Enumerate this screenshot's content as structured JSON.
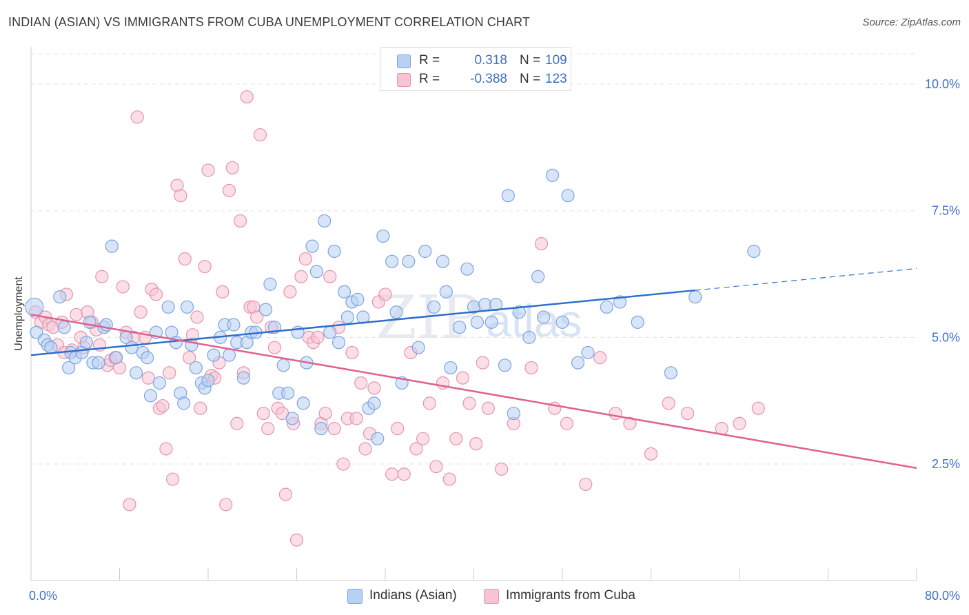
{
  "title": "INDIAN (ASIAN) VS IMMIGRANTS FROM CUBA UNEMPLOYMENT CORRELATION CHART",
  "source": "Source: ZipAtlas.com",
  "watermark": {
    "zip": "ZIP",
    "atlas": "atlas"
  },
  "legend": {
    "r_label": "R =",
    "n_label": "N =",
    "rows": [
      {
        "r": "0.318",
        "n": "109",
        "fill": "#b8d0f2",
        "stroke": "#7aa3e0"
      },
      {
        "r": "-0.388",
        "n": "123",
        "fill": "#f8c4d3",
        "stroke": "#e891ad"
      }
    ]
  },
  "chart_data": {
    "type": "scatter",
    "title": "INDIAN (ASIAN) VS IMMIGRANTS FROM CUBA UNEMPLOYMENT CORRELATION CHART",
    "xlabel": "",
    "ylabel": "Unemployment",
    "xlim": [
      0,
      80
    ],
    "ylim": [
      0.2,
      10.6
    ],
    "x_tick_labels": [
      "0.0%",
      "80.0%"
    ],
    "y_ticks": [
      2.5,
      5.0,
      7.5,
      10.0
    ],
    "y_tick_labels": [
      "2.5%",
      "5.0%",
      "7.5%",
      "10.0%"
    ],
    "grid": true,
    "legend_placement": "top-center",
    "series": [
      {
        "name": "Indians (Asian)",
        "color": "#7aa3e0",
        "fill": "#b8d0f2",
        "trend": {
          "x": [
            0,
            60
          ],
          "y": [
            4.65,
            5.93
          ],
          "extend_to": 80,
          "extend_y": 6.36
        },
        "points": [
          [
            0.3,
            5.6
          ],
          [
            0.5,
            5.1
          ],
          [
            1.2,
            4.95
          ],
          [
            1.5,
            4.85
          ],
          [
            1.8,
            4.8
          ],
          [
            2.6,
            5.8
          ],
          [
            3.0,
            5.2
          ],
          [
            3.4,
            4.4
          ],
          [
            3.6,
            4.7
          ],
          [
            4.0,
            4.6
          ],
          [
            4.6,
            4.7
          ],
          [
            5.0,
            4.9
          ],
          [
            5.3,
            5.3
          ],
          [
            5.6,
            4.5
          ],
          [
            6.1,
            4.5
          ],
          [
            6.6,
            5.2
          ],
          [
            6.8,
            5.25
          ],
          [
            7.3,
            6.8
          ],
          [
            7.7,
            4.6
          ],
          [
            8.6,
            5.0
          ],
          [
            9.1,
            4.8
          ],
          [
            9.5,
            4.3
          ],
          [
            10.1,
            4.7
          ],
          [
            10.5,
            4.6
          ],
          [
            10.8,
            3.85
          ],
          [
            11.3,
            5.1
          ],
          [
            11.6,
            4.1
          ],
          [
            12.4,
            5.6
          ],
          [
            12.7,
            5.1
          ],
          [
            13.1,
            4.9
          ],
          [
            13.5,
            3.9
          ],
          [
            13.8,
            3.7
          ],
          [
            14.1,
            5.6
          ],
          [
            14.5,
            4.85
          ],
          [
            14.9,
            4.4
          ],
          [
            15.4,
            4.1
          ],
          [
            15.7,
            4.0
          ],
          [
            16.0,
            4.15
          ],
          [
            16.5,
            4.65
          ],
          [
            17.1,
            5.0
          ],
          [
            17.5,
            5.25
          ],
          [
            17.9,
            4.65
          ],
          [
            18.3,
            5.25
          ],
          [
            18.6,
            4.9
          ],
          [
            19.2,
            4.2
          ],
          [
            19.5,
            4.9
          ],
          [
            19.9,
            5.1
          ],
          [
            20.3,
            5.1
          ],
          [
            21.2,
            5.55
          ],
          [
            21.6,
            6.05
          ],
          [
            22.0,
            5.2
          ],
          [
            22.4,
            3.9
          ],
          [
            22.8,
            4.45
          ],
          [
            23.2,
            3.9
          ],
          [
            23.6,
            3.4
          ],
          [
            24.1,
            5.1
          ],
          [
            24.6,
            3.7
          ],
          [
            24.9,
            4.5
          ],
          [
            25.4,
            6.8
          ],
          [
            25.8,
            6.3
          ],
          [
            26.2,
            3.2
          ],
          [
            26.5,
            7.3
          ],
          [
            27.0,
            5.1
          ],
          [
            27.4,
            6.7
          ],
          [
            27.8,
            4.9
          ],
          [
            28.3,
            5.9
          ],
          [
            28.6,
            5.4
          ],
          [
            29.0,
            5.7
          ],
          [
            29.5,
            5.75
          ],
          [
            30.0,
            5.4
          ],
          [
            30.5,
            3.6
          ],
          [
            31.0,
            3.7
          ],
          [
            31.3,
            3.0
          ],
          [
            31.8,
            7.0
          ],
          [
            32.6,
            6.5
          ],
          [
            33.0,
            5.5
          ],
          [
            33.5,
            4.1
          ],
          [
            34.1,
            6.5
          ],
          [
            35.0,
            4.8
          ],
          [
            35.6,
            6.7
          ],
          [
            36.4,
            5.6
          ],
          [
            37.2,
            6.5
          ],
          [
            37.5,
            5.9
          ],
          [
            37.9,
            4.4
          ],
          [
            38.7,
            5.2
          ],
          [
            39.4,
            6.35
          ],
          [
            40.0,
            5.6
          ],
          [
            40.3,
            5.3
          ],
          [
            41.0,
            5.65
          ],
          [
            41.6,
            5.3
          ],
          [
            42.0,
            5.65
          ],
          [
            42.8,
            4.45
          ],
          [
            43.1,
            7.8
          ],
          [
            43.6,
            3.5
          ],
          [
            44.1,
            5.5
          ],
          [
            45.0,
            5.0
          ],
          [
            45.8,
            6.2
          ],
          [
            46.3,
            5.4
          ],
          [
            47.1,
            8.2
          ],
          [
            48.0,
            5.3
          ],
          [
            48.5,
            7.8
          ],
          [
            49.4,
            4.5
          ],
          [
            50.3,
            4.7
          ],
          [
            52.0,
            5.6
          ],
          [
            53.2,
            5.7
          ],
          [
            54.8,
            5.3
          ],
          [
            57.8,
            4.3
          ],
          [
            60.0,
            5.8
          ],
          [
            65.3,
            6.7
          ]
        ]
      },
      {
        "name": "Immigrants from Cuba",
        "color": "#e891ad",
        "fill": "#f8c4d3",
        "trend": {
          "x": [
            0,
            80
          ],
          "y": [
            5.45,
            2.42
          ]
        },
        "points": [
          [
            0.4,
            5.5
          ],
          [
            0.9,
            5.3
          ],
          [
            1.3,
            5.4
          ],
          [
            1.6,
            5.25
          ],
          [
            2.0,
            5.2
          ],
          [
            2.4,
            4.85
          ],
          [
            2.8,
            5.3
          ],
          [
            3.0,
            4.7
          ],
          [
            3.2,
            5.85
          ],
          [
            3.7,
            4.75
          ],
          [
            4.1,
            5.45
          ],
          [
            4.5,
            5.0
          ],
          [
            4.8,
            4.8
          ],
          [
            5.1,
            5.5
          ],
          [
            5.5,
            5.3
          ],
          [
            5.9,
            5.15
          ],
          [
            6.2,
            4.85
          ],
          [
            6.4,
            6.2
          ],
          [
            6.9,
            4.45
          ],
          [
            7.2,
            4.55
          ],
          [
            7.6,
            4.6
          ],
          [
            8.0,
            4.4
          ],
          [
            8.3,
            6.0
          ],
          [
            8.6,
            5.1
          ],
          [
            8.9,
            1.7
          ],
          [
            9.3,
            5.0
          ],
          [
            9.6,
            9.35
          ],
          [
            9.9,
            5.5
          ],
          [
            10.3,
            5.0
          ],
          [
            10.6,
            4.2
          ],
          [
            10.9,
            5.95
          ],
          [
            11.3,
            5.85
          ],
          [
            11.6,
            3.6
          ],
          [
            11.9,
            3.65
          ],
          [
            12.2,
            2.8
          ],
          [
            12.5,
            4.3
          ],
          [
            12.8,
            2.2
          ],
          [
            13.2,
            8.0
          ],
          [
            13.5,
            7.8
          ],
          [
            13.9,
            6.55
          ],
          [
            14.3,
            4.6
          ],
          [
            14.6,
            5.05
          ],
          [
            15.0,
            5.4
          ],
          [
            15.3,
            3.6
          ],
          [
            15.7,
            6.4
          ],
          [
            16.0,
            8.3
          ],
          [
            16.3,
            4.25
          ],
          [
            16.6,
            4.2
          ],
          [
            17.0,
            4.5
          ],
          [
            17.3,
            5.9
          ],
          [
            17.6,
            1.7
          ],
          [
            17.9,
            7.9
          ],
          [
            18.2,
            8.35
          ],
          [
            18.6,
            3.3
          ],
          [
            18.9,
            7.3
          ],
          [
            19.2,
            4.3
          ],
          [
            19.5,
            9.75
          ],
          [
            19.8,
            5.6
          ],
          [
            20.1,
            5.6
          ],
          [
            20.4,
            5.4
          ],
          [
            20.7,
            9.0
          ],
          [
            21.0,
            3.5
          ],
          [
            21.4,
            3.2
          ],
          [
            21.7,
            5.2
          ],
          [
            22.0,
            4.8
          ],
          [
            22.3,
            3.6
          ],
          [
            22.7,
            3.5
          ],
          [
            23.0,
            1.9
          ],
          [
            23.4,
            5.9
          ],
          [
            23.7,
            3.3
          ],
          [
            24.0,
            1.0
          ],
          [
            24.4,
            6.2
          ],
          [
            24.8,
            6.55
          ],
          [
            25.1,
            5.0
          ],
          [
            25.5,
            4.9
          ],
          [
            25.9,
            5.0
          ],
          [
            26.2,
            3.3
          ],
          [
            26.6,
            3.5
          ],
          [
            27.0,
            6.2
          ],
          [
            27.4,
            3.2
          ],
          [
            27.8,
            5.2
          ],
          [
            28.2,
            2.5
          ],
          [
            28.6,
            3.4
          ],
          [
            29.0,
            4.7
          ],
          [
            29.4,
            3.4
          ],
          [
            29.8,
            4.1
          ],
          [
            30.2,
            2.8
          ],
          [
            30.6,
            3.1
          ],
          [
            31.0,
            4.0
          ],
          [
            31.4,
            5.7
          ],
          [
            32.0,
            5.85
          ],
          [
            32.6,
            2.3
          ],
          [
            33.1,
            3.2
          ],
          [
            33.7,
            2.3
          ],
          [
            34.3,
            4.7
          ],
          [
            34.8,
            2.8
          ],
          [
            35.4,
            3.0
          ],
          [
            36.0,
            3.7
          ],
          [
            36.6,
            2.45
          ],
          [
            37.2,
            4.1
          ],
          [
            37.8,
            2.2
          ],
          [
            38.4,
            3.0
          ],
          [
            39.0,
            4.2
          ],
          [
            39.6,
            3.7
          ],
          [
            40.2,
            2.9
          ],
          [
            40.8,
            4.5
          ],
          [
            41.3,
            3.6
          ],
          [
            42.5,
            2.4
          ],
          [
            43.6,
            3.3
          ],
          [
            45.2,
            4.4
          ],
          [
            46.1,
            6.85
          ],
          [
            47.3,
            3.6
          ],
          [
            48.4,
            3.3
          ],
          [
            50.1,
            2.1
          ],
          [
            51.4,
            4.6
          ],
          [
            52.8,
            3.5
          ],
          [
            54.1,
            3.3
          ],
          [
            56.0,
            2.7
          ],
          [
            57.6,
            3.7
          ],
          [
            59.3,
            3.5
          ],
          [
            62.4,
            3.2
          ],
          [
            64.0,
            3.3
          ],
          [
            65.7,
            3.6
          ]
        ]
      }
    ]
  }
}
